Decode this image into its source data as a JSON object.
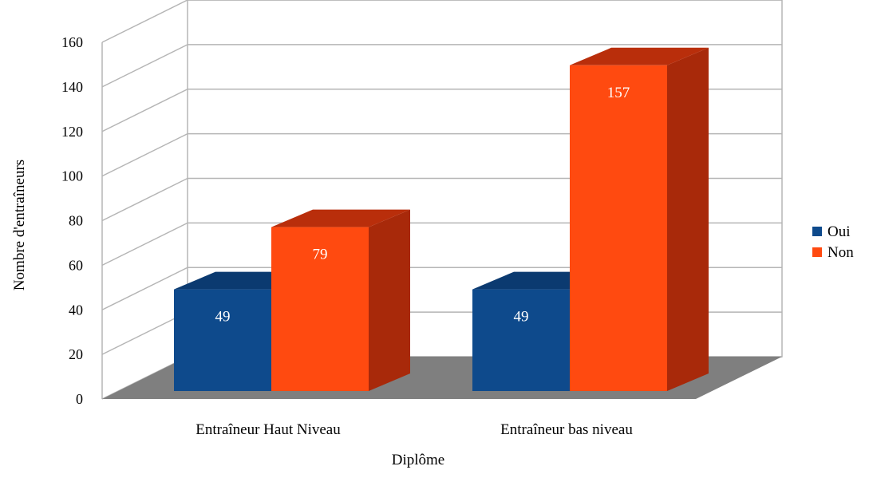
{
  "chart_data": {
    "type": "bar",
    "title": "",
    "xlabel": "Diplôme",
    "ylabel": "Nombre d'entraîneurs",
    "categories": [
      "Entraîneur Haut Niveau",
      "Entraîneur bas niveau"
    ],
    "series": [
      {
        "name": "Oui",
        "values": [
          49,
          49
        ],
        "color": "#0e4a8c",
        "side_color": "#0a3566",
        "top_color": "#0b3a70"
      },
      {
        "name": "Non",
        "values": [
          79,
          157
        ],
        "color": "#ff4a10",
        "side_color": "#a8290a",
        "top_color": "#b92e0b"
      }
    ],
    "ylim": [
      0,
      160
    ],
    "yticks": [
      "0",
      "20",
      "40",
      "60",
      "80",
      "100",
      "120",
      "140",
      "160"
    ],
    "data_labels": [
      [
        "49",
        "49"
      ],
      [
        "79",
        "157"
      ]
    ],
    "grid": true,
    "legend_position": "right",
    "three_d": true
  }
}
